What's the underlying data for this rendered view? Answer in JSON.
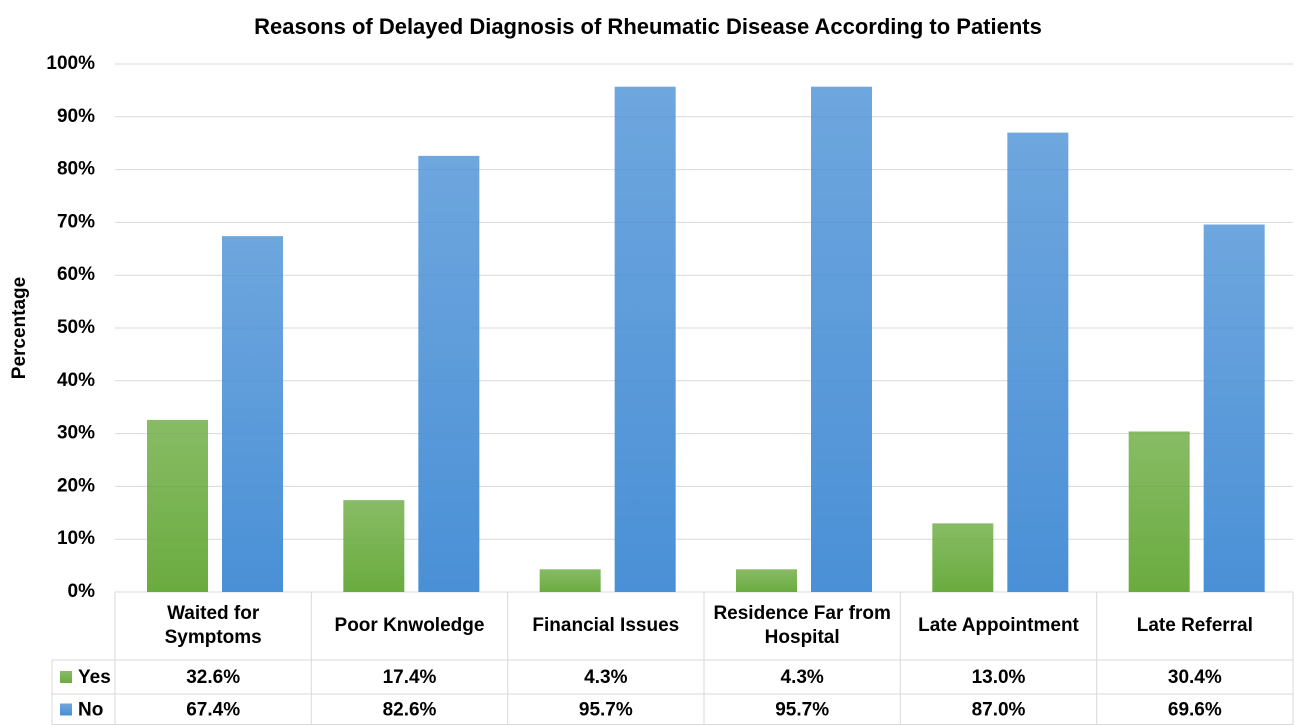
{
  "chart_data": {
    "type": "bar",
    "title": "Reasons of Delayed Diagnosis of Rheumatic Disease According to Patients",
    "y_label": "Percentage",
    "categories": [
      "Waited for Symptoms",
      "Poor Knwoledge",
      "Financial Issues",
      "Residence Far from Hospital",
      "Late Appointment",
      "Late Referral"
    ],
    "series": [
      {
        "name": "Yes",
        "color": "#6aab3f",
        "values": [
          32.6,
          17.4,
          4.3,
          4.3,
          13.0,
          30.4
        ],
        "value_labels": [
          "32.6%",
          "17.4%",
          "4.3%",
          "4.3%",
          "13.0%",
          "30.4%"
        ]
      },
      {
        "name": "No",
        "color": "#4a90d6",
        "values": [
          67.4,
          82.6,
          95.7,
          95.7,
          87.0,
          69.6
        ],
        "value_labels": [
          "67.4%",
          "82.6%",
          "95.7%",
          "95.7%",
          "87.0%",
          "69.6%"
        ]
      }
    ],
    "ylim": [
      0,
      100
    ],
    "yticks": [
      {
        "value": 0,
        "label": "0%"
      },
      {
        "value": 10,
        "label": "10%"
      },
      {
        "value": 20,
        "label": "20%"
      },
      {
        "value": 30,
        "label": "30%"
      },
      {
        "value": 40,
        "label": "40%"
      },
      {
        "value": 50,
        "label": "50%"
      },
      {
        "value": 60,
        "label": "60%"
      },
      {
        "value": 70,
        "label": "70%"
      },
      {
        "value": 80,
        "label": "80%"
      },
      {
        "value": 90,
        "label": "90%"
      },
      {
        "value": 100,
        "label": "100%"
      }
    ],
    "grid": true
  }
}
